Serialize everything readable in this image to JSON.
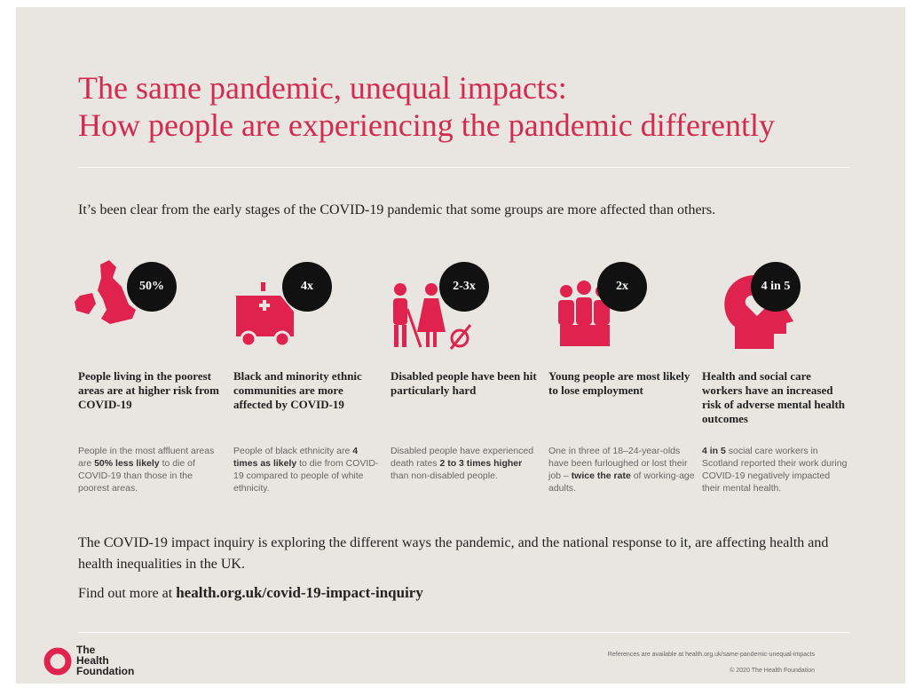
{
  "header": {
    "title": [
      "The same pandemic, unequal impacts:",
      "How people are experiencing the pandemic differently"
    ],
    "intro": "It’s been clear from the early stages of the COVID-19 pandemic that some groups are more affected than others."
  },
  "cards": [
    {
      "badge": "50%",
      "heading": "People living in the poorest areas are at higher risk from COVID-19",
      "body": [
        "People in the most affluent areas are ",
        "50% less likely",
        " to die of COVID-19 than those in the poorest areas."
      ]
    },
    {
      "badge": "4x",
      "heading": "Black and minority ethnic communities are more affected by COVID-19",
      "body": [
        "People of black ethnicity are ",
        "4 times as likely",
        " to die from COVID-19 compared to people of white ethnicity."
      ]
    },
    {
      "badge": "2-3x",
      "heading": "Disabled people have been hit particularly hard",
      "body": [
        "Disabled people have experienced death rates ",
        "2 to 3 times higher",
        " than non-disabled people."
      ]
    },
    {
      "badge": "2x",
      "heading": "Young people are most likely to lose employment",
      "body": [
        "One in three of 18–24-year-olds have been furloughed or lost their job – ",
        "twice the rate",
        " of working-age adults."
      ]
    },
    {
      "badge": "4 in 5",
      "heading": "Health and social care workers have an increased risk of adverse mental health outcomes",
      "body": [
        "",
        "4 in 5",
        " social care workers in Scotland reported their work during COVID-19 negatively impacted their mental health."
      ]
    }
  ],
  "footer": {
    "inquiry": "The COVID-19 impact inquiry is exploring the different ways the pandemic, and the national response to it, are affecting health and health inequalities in the UK.",
    "find_more": [
      "Find out more at ",
      "health.org.uk/covid-19-impact-inquiry"
    ],
    "logo": [
      "The",
      "Health",
      "Foundation"
    ],
    "references": "References are available at health.org.uk/same-pandemic-unequal-impacts",
    "copyright": "© 2020 The Health Foundation"
  }
}
